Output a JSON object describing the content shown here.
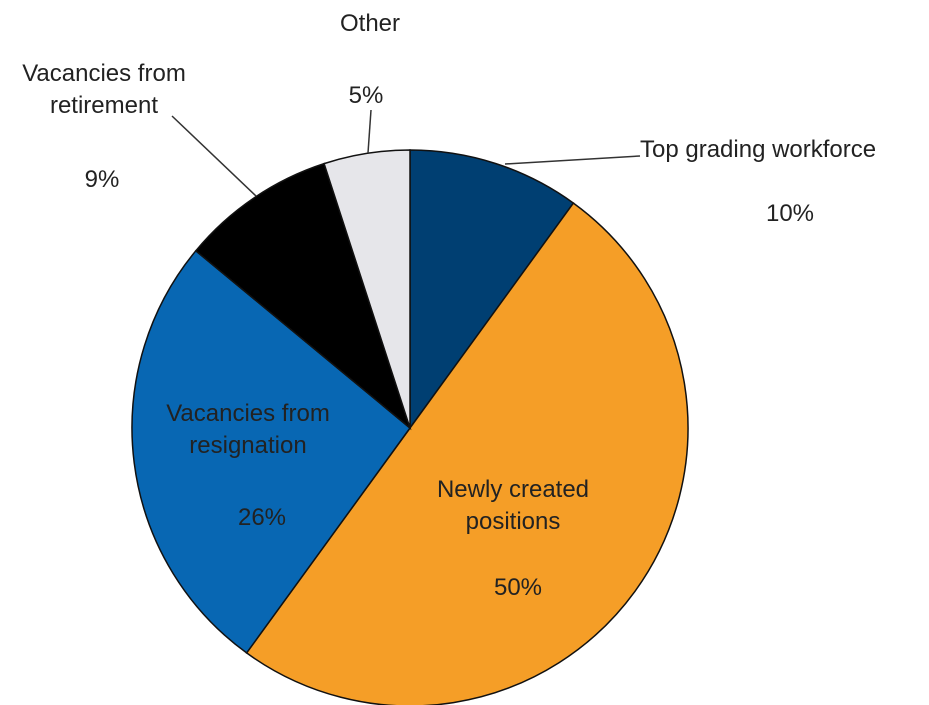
{
  "chart_data": {
    "type": "pie",
    "categories": [
      "Top grading workforce",
      "Newly created positions",
      "Vacancies from resignation",
      "Vacancies from retirement",
      "Other"
    ],
    "values": [
      10,
      50,
      26,
      9,
      5
    ],
    "value_labels": [
      "10%",
      "50%",
      "26%",
      "9%",
      "5%"
    ],
    "colors": [
      "#003f72",
      "#f59e27",
      "#0867b3",
      "#000000",
      "#e6e6ea"
    ]
  }
}
